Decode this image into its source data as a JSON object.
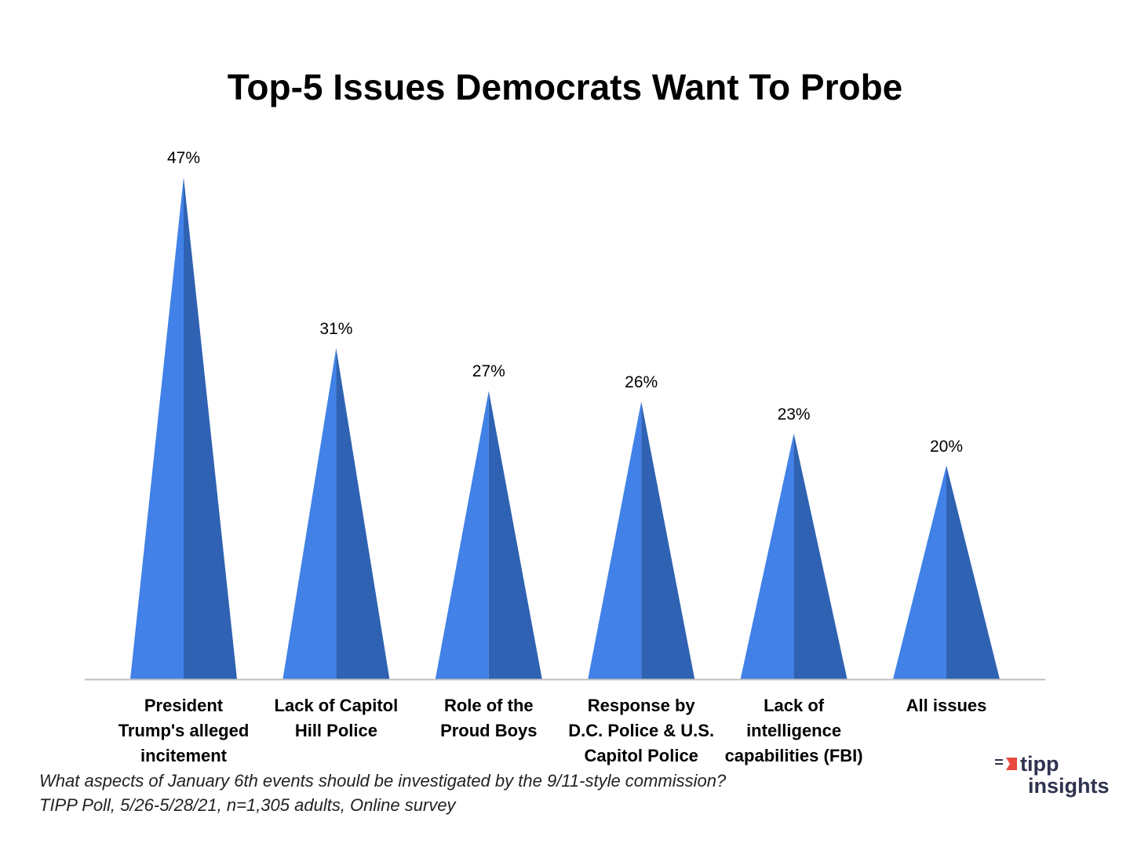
{
  "chart_data": {
    "type": "bar",
    "title": "Top-5 Issues Democrats Want To Probe",
    "categories": [
      "President Trump's alleged incitement",
      "Lack of Capitol Hill Police",
      "Role of the Proud Boys",
      "Response by D.C. Police & U.S. Capitol Police",
      "Lack of intelligence capabilities (FBI)",
      "All issues"
    ],
    "category_lines": [
      [
        "President",
        "Trump's alleged",
        "incitement"
      ],
      [
        "Lack of Capitol",
        "Hill Police"
      ],
      [
        "Role of the",
        "Proud Boys"
      ],
      [
        "Response by",
        "D.C. Police & U.S.",
        "Capitol Police"
      ],
      [
        "Lack of",
        "intelligence",
        "capabilities (FBI)"
      ],
      [
        "All issues"
      ]
    ],
    "values": [
      47,
      31,
      27,
      26,
      23,
      20
    ],
    "value_labels": [
      "47%",
      "31%",
      "27%",
      "26%",
      "23%",
      "20%"
    ],
    "xlabel": "",
    "ylabel": "",
    "ylim": [
      0,
      47
    ],
    "grid": false,
    "colors": {
      "light": "#4181e8",
      "dark": "#2f62b3",
      "axis": "#bfbfbf"
    }
  },
  "footnote": {
    "question": "What aspects of January 6th events should be investigated by the 9/11-style commission?",
    "source": "TIPP Poll, 5/26-5/28/21, n=1,305 adults, Online survey"
  },
  "logo": {
    "line1": "tipp",
    "line2": "insights"
  }
}
